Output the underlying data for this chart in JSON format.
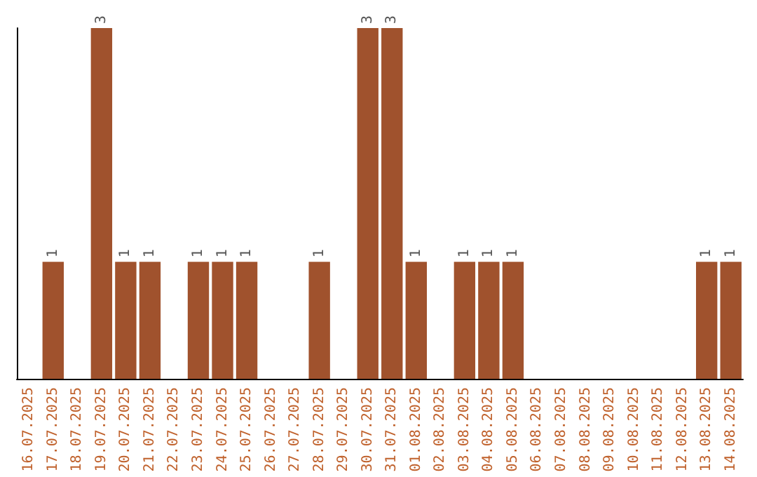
{
  "chart_data": {
    "type": "bar",
    "categories": [
      "16.07.2025",
      "17.07.2025",
      "18.07.2025",
      "19.07.2025",
      "20.07.2025",
      "21.07.2025",
      "22.07.2025",
      "23.07.2025",
      "24.07.2025",
      "25.07.2025",
      "26.07.2025",
      "27.07.2025",
      "28.07.2025",
      "29.07.2025",
      "30.07.2025",
      "31.07.2025",
      "01.08.2025",
      "02.08.2025",
      "03.08.2025",
      "04.08.2025",
      "05.08.2025",
      "06.08.2025",
      "07.08.2025",
      "08.08.2025",
      "09.08.2025",
      "10.08.2025",
      "11.08.2025",
      "12.08.2025",
      "13.08.2025",
      "14.08.2025"
    ],
    "values": [
      0,
      1,
      0,
      3,
      1,
      1,
      0,
      1,
      1,
      1,
      0,
      0,
      1,
      0,
      3,
      3,
      1,
      0,
      1,
      1,
      1,
      0,
      0,
      0,
      0,
      0,
      0,
      0,
      1,
      1
    ],
    "value_labels": [
      null,
      "1",
      null,
      "3",
      "1",
      "1",
      null,
      "1",
      "1",
      "1",
      null,
      null,
      "1",
      null,
      "3",
      "3",
      "1",
      null,
      "1",
      "1",
      "1",
      null,
      null,
      null,
      null,
      null,
      null,
      null,
      "1",
      "1"
    ],
    "color": "#a0522d",
    "tick_labels": "x"
  }
}
